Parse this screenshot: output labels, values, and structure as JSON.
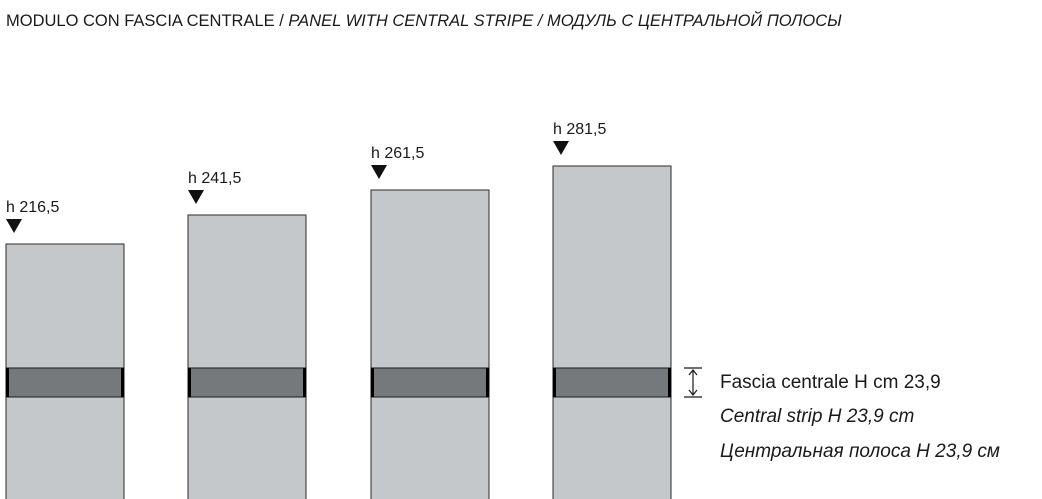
{
  "header": {
    "title": "MODULO CON FASCIA CENTRALE /",
    "title_italic": "PANEL WITH CENTRAL STRIPE / МОДУЛЬ С ЦЕНТРАЛЬНОЙ ПОЛОСЫ"
  },
  "panels": [
    {
      "label": "h 216,5"
    },
    {
      "label": "h 241,5"
    },
    {
      "label": "h 261,5"
    },
    {
      "label": "h 281,5"
    }
  ],
  "legend": [
    "Fascia centrale H cm 23,9",
    "Central strip H 23,9 cm",
    "Центральная полоса H 23,9 см"
  ]
}
